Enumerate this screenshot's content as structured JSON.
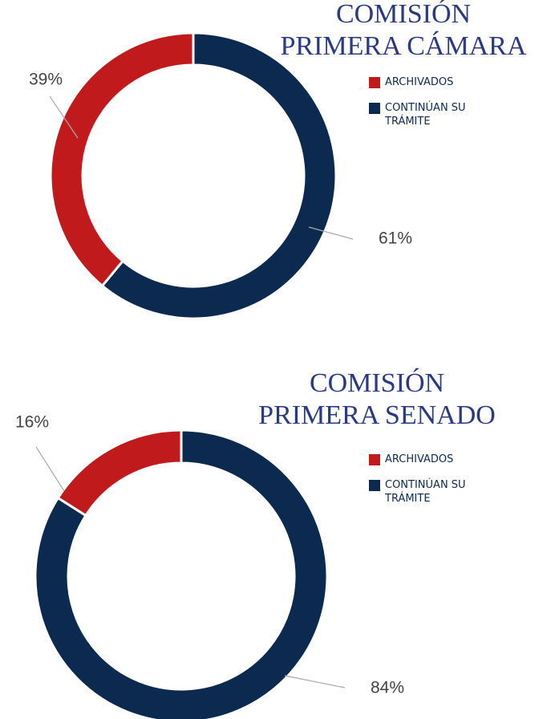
{
  "chart_data": [
    {
      "type": "pie",
      "donut": true,
      "title": [
        "COMISIÓN",
        "PRIMERA CÁMARA"
      ],
      "categories": [
        "ARCHIVADOS",
        "CONTINÚAN SU TRÁMITE"
      ],
      "values": [
        39,
        61
      ],
      "value_labels": [
        "39%",
        "61%"
      ],
      "colors": [
        "#c01a1d",
        "#0c2a4f"
      ],
      "legend": "upper right"
    },
    {
      "type": "pie",
      "donut": true,
      "title": [
        "COMISIÓN",
        "PRIMERA SENADO"
      ],
      "categories": [
        "ARCHIVADOS",
        "CONTINÚAN SU TRÁMITE"
      ],
      "values": [
        16,
        84
      ],
      "value_labels": [
        "16%",
        "84%"
      ],
      "colors": [
        "#c01a1d",
        "#0c2a4f"
      ],
      "legend": "upper right"
    }
  ]
}
